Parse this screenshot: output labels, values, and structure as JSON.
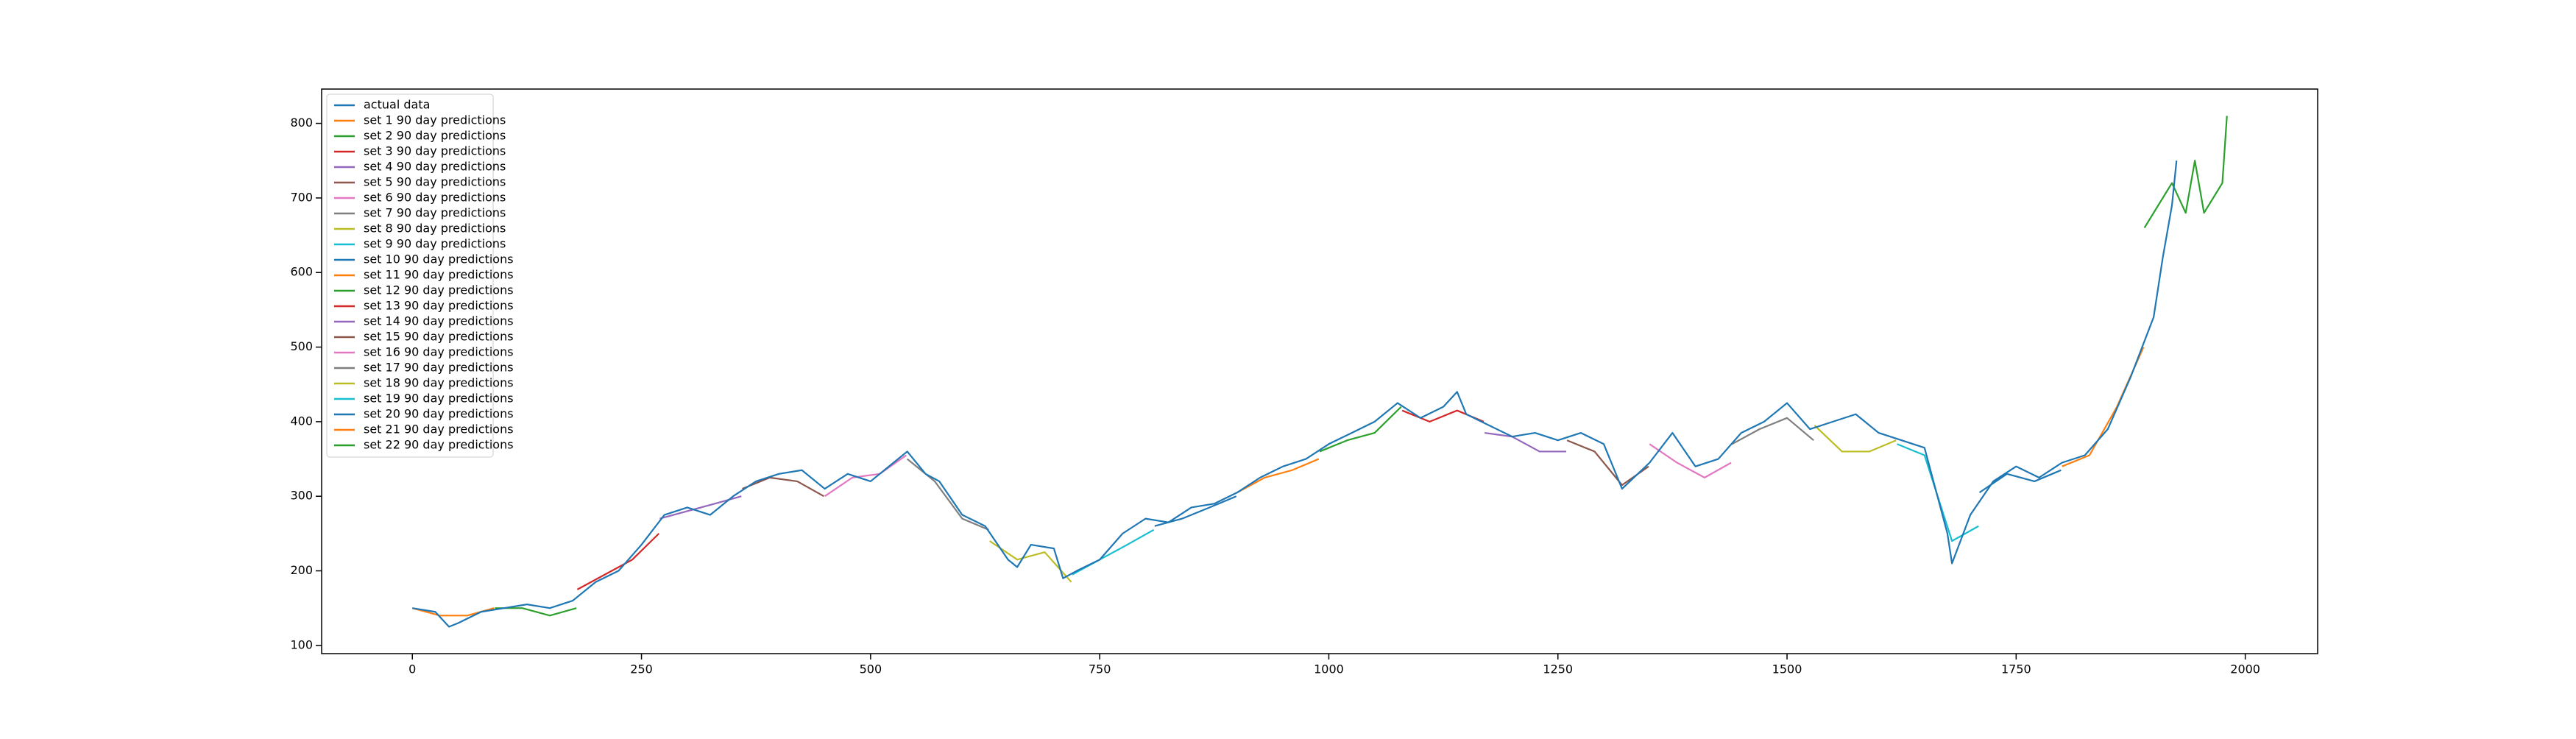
{
  "chart_data": {
    "type": "line",
    "xlim": [
      -99,
      2079
    ],
    "ylim": [
      89,
      846
    ],
    "xticks": [
      0,
      250,
      500,
      750,
      1000,
      1250,
      1500,
      1750,
      2000
    ],
    "yticks": [
      100,
      200,
      300,
      400,
      500,
      600,
      700,
      800
    ],
    "legend": "upper left",
    "series": [
      {
        "name": "actual data",
        "color": "#1f77b4",
        "x": [
          0,
          25,
          40,
          50,
          75,
          100,
          125,
          150,
          175,
          200,
          225,
          250,
          275,
          300,
          325,
          350,
          375,
          400,
          425,
          450,
          475,
          500,
          525,
          540,
          560,
          575,
          600,
          625,
          650,
          660,
          675,
          700,
          710,
          725,
          750,
          775,
          800,
          825,
          850,
          875,
          900,
          925,
          950,
          975,
          1000,
          1025,
          1050,
          1075,
          1100,
          1125,
          1140,
          1150,
          1175,
          1200,
          1225,
          1250,
          1275,
          1300,
          1320,
          1350,
          1375,
          1400,
          1425,
          1450,
          1475,
          1500,
          1525,
          1550,
          1575,
          1600,
          1625,
          1650,
          1675,
          1680,
          1700,
          1725,
          1750,
          1775,
          1800,
          1825,
          1850,
          1875,
          1900,
          1910,
          1920,
          1925
        ],
        "values": [
          150,
          145,
          125,
          130,
          145,
          150,
          155,
          150,
          160,
          185,
          200,
          235,
          275,
          285,
          275,
          300,
          320,
          330,
          335,
          310,
          330,
          320,
          345,
          360,
          330,
          320,
          275,
          260,
          215,
          205,
          235,
          230,
          190,
          200,
          215,
          250,
          270,
          265,
          285,
          290,
          305,
          325,
          340,
          350,
          370,
          385,
          400,
          425,
          405,
          420,
          440,
          410,
          395,
          380,
          385,
          375,
          385,
          370,
          310,
          345,
          385,
          340,
          350,
          385,
          400,
          425,
          390,
          400,
          410,
          385,
          375,
          365,
          250,
          210,
          275,
          320,
          340,
          325,
          345,
          355,
          390,
          460,
          540,
          620,
          690,
          750
        ]
      },
      {
        "name": "set 1 90 day predictions",
        "color": "#ff7f0e",
        "x": [
          0,
          30,
          60,
          89
        ],
        "values": [
          150,
          140,
          140,
          150
        ]
      },
      {
        "name": "set 2 90 day predictions",
        "color": "#2ca02c",
        "x": [
          90,
          120,
          150,
          179
        ],
        "values": [
          150,
          150,
          140,
          150
        ]
      },
      {
        "name": "set 3 90 day predictions",
        "color": "#d62728",
        "x": [
          180,
          210,
          240,
          269
        ],
        "values": [
          175,
          195,
          215,
          250
        ]
      },
      {
        "name": "set 4 90 day predictions",
        "color": "#9467bd",
        "x": [
          270,
          300,
          330,
          359
        ],
        "values": [
          270,
          280,
          290,
          300
        ]
      },
      {
        "name": "set 5 90 day predictions",
        "color": "#8c564b",
        "x": [
          360,
          390,
          420,
          449
        ],
        "values": [
          310,
          325,
          320,
          300
        ]
      },
      {
        "name": "set 6 90 day predictions",
        "color": "#e377c2",
        "x": [
          450,
          480,
          510,
          539
        ],
        "values": [
          300,
          325,
          330,
          355
        ]
      },
      {
        "name": "set 7 90 day predictions",
        "color": "#7f7f7f",
        "x": [
          540,
          570,
          600,
          629
        ],
        "values": [
          350,
          320,
          270,
          255
        ]
      },
      {
        "name": "set 8 90 day predictions",
        "color": "#bcbd22",
        "x": [
          630,
          660,
          690,
          719
        ],
        "values": [
          240,
          215,
          225,
          185
        ]
      },
      {
        "name": "set 9 90 day predictions",
        "color": "#17becf",
        "x": [
          720,
          750,
          780,
          809
        ],
        "values": [
          195,
          215,
          235,
          255
        ]
      },
      {
        "name": "set 10 90 day predictions",
        "color": "#1f77b4",
        "x": [
          810,
          840,
          870,
          899
        ],
        "values": [
          260,
          270,
          285,
          300
        ]
      },
      {
        "name": "set 11 90 day predictions",
        "color": "#ff7f0e",
        "x": [
          900,
          930,
          960,
          989
        ],
        "values": [
          305,
          325,
          335,
          350
        ]
      },
      {
        "name": "set 12 90 day predictions",
        "color": "#2ca02c",
        "x": [
          990,
          1020,
          1050,
          1079
        ],
        "values": [
          360,
          375,
          385,
          420
        ]
      },
      {
        "name": "set 13 90 day predictions",
        "color": "#d62728",
        "x": [
          1080,
          1110,
          1140,
          1169
        ],
        "values": [
          415,
          400,
          415,
          400
        ]
      },
      {
        "name": "set 14 90 day predictions",
        "color": "#9467bd",
        "x": [
          1170,
          1200,
          1230,
          1259
        ],
        "values": [
          385,
          380,
          360,
          360
        ]
      },
      {
        "name": "set 15 90 day predictions",
        "color": "#8c564b",
        "x": [
          1260,
          1290,
          1320,
          1349
        ],
        "values": [
          375,
          360,
          315,
          340
        ]
      },
      {
        "name": "set 16 90 day predictions",
        "color": "#e377c2",
        "x": [
          1350,
          1380,
          1410,
          1439
        ],
        "values": [
          370,
          345,
          325,
          345
        ]
      },
      {
        "name": "set 17 90 day predictions",
        "color": "#7f7f7f",
        "x": [
          1440,
          1470,
          1500,
          1529
        ],
        "values": [
          370,
          390,
          405,
          375
        ]
      },
      {
        "name": "set 18 90 day predictions",
        "color": "#bcbd22",
        "x": [
          1530,
          1560,
          1590,
          1619
        ],
        "values": [
          395,
          360,
          360,
          375
        ]
      },
      {
        "name": "set 19 90 day predictions",
        "color": "#17becf",
        "x": [
          1620,
          1650,
          1680,
          1709
        ],
        "values": [
          370,
          355,
          240,
          260
        ]
      },
      {
        "name": "set 20 90 day predictions",
        "color": "#1f77b4",
        "x": [
          1710,
          1740,
          1770,
          1799
        ],
        "values": [
          305,
          330,
          320,
          335
        ]
      },
      {
        "name": "set 21 90 day predictions",
        "color": "#ff7f0e",
        "x": [
          1800,
          1830,
          1860,
          1889
        ],
        "values": [
          340,
          355,
          420,
          500
        ]
      },
      {
        "name": "set 22 90 day predictions",
        "color": "#2ca02c",
        "x": [
          1890,
          1920,
          1935,
          1945,
          1955,
          1965,
          1975,
          1980
        ],
        "values": [
          660,
          720,
          680,
          750,
          680,
          700,
          720,
          810
        ]
      }
    ]
  }
}
